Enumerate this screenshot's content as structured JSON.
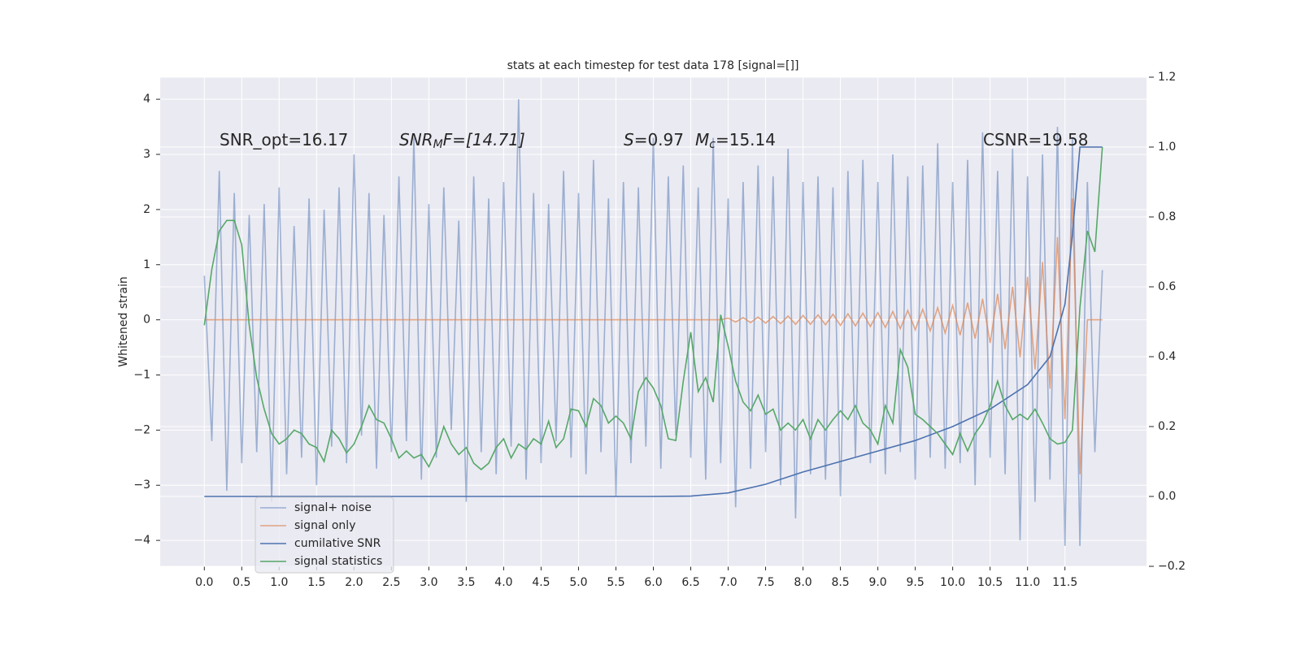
{
  "chart_data": {
    "type": "line",
    "title": "stats at each timestep for test data 178 [signal=[]]",
    "y_label": "Whitened strain",
    "annotations": [
      {
        "parts": [
          "SNR_opt=16.17"
        ]
      },
      {
        "parts": [
          "SNR",
          "M",
          "F=[14.71]"
        ]
      },
      {
        "parts": [
          "S",
          "=0.97",
          "M",
          "c",
          "=15.14"
        ]
      },
      {
        "parts": [
          "CSNR=19.58"
        ]
      }
    ],
    "xlim": [
      -0.59,
      12.59
    ],
    "ylim": [
      -4.47,
      4.4
    ],
    "y2lim": [
      -0.2,
      1.2
    ],
    "xticks": [
      {
        "value": 0,
        "label": "0.0"
      },
      0.5,
      {
        "value": 1,
        "label": "1.0"
      },
      1.5,
      {
        "value": 2,
        "label": "2.0"
      },
      2.5,
      {
        "value": 3,
        "label": "3.0"
      },
      3.5,
      {
        "value": 4,
        "label": "4.0"
      },
      4.5,
      {
        "value": 5,
        "label": "5.0"
      },
      5.5,
      {
        "value": 6,
        "label": "6.0"
      },
      6.5,
      {
        "value": 7,
        "label": "7.0"
      },
      7.5,
      {
        "value": 8,
        "label": "8.0"
      },
      8.5,
      {
        "value": 9,
        "label": "9.0"
      },
      9.5,
      {
        "value": 10,
        "label": "10.0"
      },
      10.5,
      {
        "value": 11,
        "label": "11.0"
      },
      11.5
    ],
    "yticks": [
      {
        "value": -4,
        "label": "−4"
      },
      {
        "value": -3,
        "label": "−3"
      },
      {
        "value": -2,
        "label": "−2"
      },
      {
        "value": -1,
        "label": "−1"
      },
      0,
      1,
      2,
      3,
      4
    ],
    "y2ticks": [
      {
        "value": -0.2,
        "label": "−0.2"
      },
      {
        "value": 0,
        "label": "0.0"
      },
      0.2,
      0.4,
      0.6,
      0.8,
      {
        "value": 1,
        "label": "1.0"
      },
      1.2
    ],
    "grid": true,
    "legend": "lower left",
    "x": [
      0,
      0.1,
      0.2,
      0.3,
      0.4,
      0.5,
      0.6,
      0.7,
      0.8,
      0.9,
      1,
      1.1,
      1.2,
      1.3,
      1.4,
      1.5,
      1.6,
      1.7,
      1.8,
      1.9,
      2,
      2.1,
      2.2,
      2.3,
      2.4,
      2.5,
      2.6,
      2.7,
      2.8,
      2.9,
      3,
      3.1,
      3.2,
      3.3,
      3.4,
      3.5,
      3.6,
      3.7,
      3.8,
      3.9,
      4,
      4.1,
      4.2,
      4.3,
      4.4,
      4.5,
      4.6,
      4.7,
      4.8,
      4.9,
      5,
      5.1,
      5.2,
      5.3,
      5.4,
      5.5,
      5.6,
      5.7,
      5.8,
      5.9,
      6,
      6.1,
      6.2,
      6.3,
      6.4,
      6.5,
      6.6,
      6.7,
      6.8,
      6.9,
      7,
      7.1,
      7.2,
      7.3,
      7.4,
      7.5,
      7.6,
      7.7,
      7.8,
      7.9,
      8,
      8.1,
      8.2,
      8.3,
      8.4,
      8.5,
      8.6,
      8.7,
      8.8,
      8.9,
      9,
      9.1,
      9.2,
      9.3,
      9.4,
      9.5,
      9.6,
      9.7,
      9.8,
      9.9,
      10,
      10.1,
      10.2,
      10.3,
      10.4,
      10.5,
      10.6,
      10.7,
      10.8,
      10.9,
      11,
      11.1,
      11.2,
      11.3,
      11.4,
      11.5,
      11.6,
      11.7,
      11.8,
      11.9,
      12
    ],
    "series": [
      {
        "name": "signal+ noise",
        "color": "#4c72b0",
        "alpha": 0.5,
        "values": [
          0.8,
          -2.2,
          2.7,
          -3.1,
          2.3,
          -2.6,
          1.9,
          -2.4,
          2.1,
          -3.3,
          2.4,
          -2.8,
          1.7,
          -2.5,
          2.2,
          -3.0,
          2.0,
          -2.3,
          2.4,
          -2.6,
          3.0,
          -2.1,
          2.3,
          -2.7,
          1.9,
          -2.4,
          2.6,
          -2.2,
          3.3,
          -2.9,
          2.1,
          -2.5,
          2.4,
          -2.0,
          1.8,
          -3.3,
          2.6,
          -2.4,
          2.2,
          -2.8,
          2.5,
          -2.3,
          4.0,
          -2.9,
          2.3,
          -2.6,
          2.1,
          -2.2,
          2.7,
          -2.5,
          2.3,
          -2.8,
          2.9,
          -2.4,
          2.2,
          -3.2,
          2.5,
          -2.6,
          2.4,
          -2.3,
          3.3,
          -2.7,
          2.6,
          -2.1,
          2.8,
          -2.5,
          2.4,
          -2.9,
          3.3,
          -2.6,
          2.2,
          -3.4,
          2.5,
          -2.7,
          2.8,
          -2.4,
          2.6,
          -3.0,
          3.1,
          -3.6,
          2.5,
          -2.8,
          2.6,
          -2.9,
          2.4,
          -3.2,
          2.7,
          -2.5,
          2.9,
          -2.6,
          2.5,
          -2.8,
          3.0,
          -2.4,
          2.6,
          -2.9,
          2.8,
          -2.5,
          3.2,
          -2.7,
          2.5,
          -2.6,
          2.9,
          -3.0,
          3.4,
          -2.5,
          2.7,
          -2.8,
          3.1,
          -4.0,
          2.6,
          -3.3,
          3.0,
          -2.9,
          3.5,
          -4.1,
          3.3,
          -4.1,
          2.5,
          -2.4,
          0.9
        ]
      },
      {
        "name": "signal only",
        "color": "#dd8452",
        "alpha": 0.7,
        "values": [
          0,
          0,
          0,
          0,
          0,
          0,
          0,
          0,
          0,
          0,
          0,
          0,
          0,
          0,
          0,
          0,
          0,
          0,
          0,
          0,
          0,
          0,
          0,
          0,
          0,
          0,
          0,
          0,
          0,
          0,
          0,
          0,
          0,
          0,
          0,
          0,
          0,
          0,
          0,
          0,
          0,
          0,
          0,
          0,
          0,
          0,
          0,
          0,
          0,
          0,
          0,
          0,
          0,
          0,
          0,
          0,
          0,
          0,
          0,
          0,
          0,
          0,
          0,
          0,
          0,
          0,
          0,
          0,
          0,
          0,
          0.03,
          -0.04,
          0.04,
          -0.05,
          0.05,
          -0.06,
          0.06,
          -0.07,
          0.07,
          -0.08,
          0.08,
          -0.08,
          0.09,
          -0.09,
          0.1,
          -0.1,
          0.11,
          -0.11,
          0.12,
          -0.12,
          0.13,
          -0.14,
          0.15,
          -0.16,
          0.17,
          -0.18,
          0.19,
          -0.2,
          0.22,
          -0.24,
          0.26,
          -0.28,
          0.31,
          -0.34,
          0.38,
          -0.42,
          0.47,
          -0.53,
          0.6,
          -0.68,
          0.78,
          -0.9,
          1.05,
          -1.25,
          1.5,
          -1.8,
          2.2,
          -2.8,
          0,
          0,
          0
        ]
      },
      {
        "name": "cumilative SNR",
        "color": "#4c72b0",
        "alpha": 1,
        "axis": "y2",
        "x": [
          0,
          6,
          6.5,
          7,
          7.5,
          8,
          8.5,
          9,
          9.5,
          10,
          10.5,
          11,
          11.3,
          11.5,
          11.6,
          11.7,
          12
        ],
        "values": [
          0,
          0,
          0.001,
          0.01,
          0.035,
          0.07,
          0.1,
          0.13,
          0.16,
          0.2,
          0.25,
          0.32,
          0.4,
          0.55,
          0.75,
          1.0,
          1.0
        ]
      },
      {
        "name": "signal statistics",
        "color": "#55a868",
        "alpha": 1,
        "axis": "y2",
        "values": [
          0.49,
          0.65,
          0.76,
          0.79,
          0.79,
          0.72,
          0.49,
          0.34,
          0.25,
          0.18,
          0.15,
          0.165,
          0.19,
          0.18,
          0.15,
          0.14,
          0.1,
          0.19,
          0.165,
          0.125,
          0.15,
          0.2,
          0.26,
          0.22,
          0.21,
          0.165,
          0.11,
          0.13,
          0.11,
          0.12,
          0.085,
          0.13,
          0.2,
          0.15,
          0.12,
          0.14,
          0.095,
          0.077,
          0.095,
          0.14,
          0.165,
          0.11,
          0.15,
          0.135,
          0.165,
          0.15,
          0.215,
          0.14,
          0.165,
          0.25,
          0.245,
          0.2,
          0.28,
          0.26,
          0.21,
          0.23,
          0.21,
          0.165,
          0.3,
          0.34,
          0.31,
          0.26,
          0.165,
          0.16,
          0.33,
          0.47,
          0.3,
          0.34,
          0.27,
          0.52,
          0.43,
          0.33,
          0.27,
          0.245,
          0.29,
          0.235,
          0.25,
          0.19,
          0.21,
          0.19,
          0.22,
          0.165,
          0.22,
          0.19,
          0.22,
          0.245,
          0.22,
          0.26,
          0.21,
          0.19,
          0.15,
          0.26,
          0.21,
          0.42,
          0.37,
          0.235,
          0.22,
          0.2,
          0.18,
          0.15,
          0.12,
          0.18,
          0.13,
          0.18,
          0.21,
          0.26,
          0.33,
          0.26,
          0.22,
          0.235,
          0.22,
          0.25,
          0.21,
          0.165,
          0.15,
          0.155,
          0.19,
          0.54,
          0.76,
          0.7,
          1.0
        ]
      }
    ]
  }
}
